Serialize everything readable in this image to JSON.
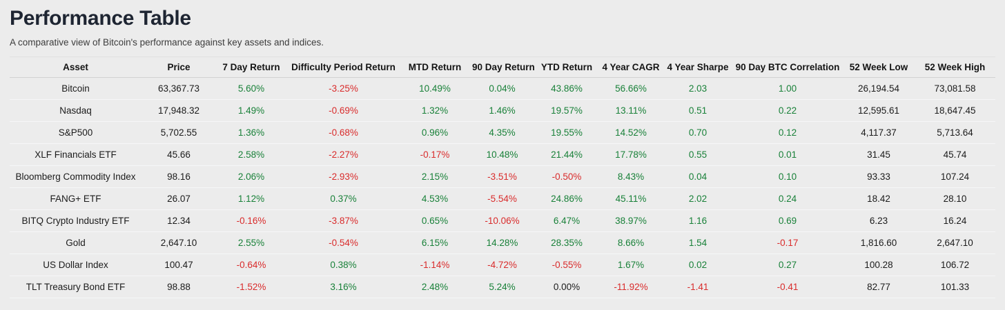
{
  "header": {
    "title": "Performance Table",
    "subtitle": "A comparative view of Bitcoin's performance against key assets and indices."
  },
  "colors": {
    "positive": "#188038",
    "negative": "#d92b2b",
    "neutral": "#1b1b1b"
  },
  "chart_data": {
    "type": "table",
    "title": "Performance Table",
    "columns": [
      "Asset",
      "Price",
      "7 Day Return",
      "Difficulty Period Return",
      "MTD Return",
      "90 Day Return",
      "YTD Return",
      "4 Year CAGR",
      "4 Year Sharpe",
      "90 Day BTC Correlation",
      "52 Week Low",
      "52 Week High"
    ],
    "rows": [
      [
        "Bitcoin",
        "63,367.73",
        {
          "v": "5.60%",
          "s": "pos"
        },
        {
          "v": "-3.25%",
          "s": "neg"
        },
        {
          "v": "10.49%",
          "s": "pos"
        },
        {
          "v": "0.04%",
          "s": "pos"
        },
        {
          "v": "43.86%",
          "s": "pos"
        },
        {
          "v": "56.66%",
          "s": "pos"
        },
        {
          "v": "2.03",
          "s": "pos"
        },
        {
          "v": "1.00",
          "s": "pos"
        },
        "26,194.54",
        "73,081.58"
      ],
      [
        "Nasdaq",
        "17,948.32",
        {
          "v": "1.49%",
          "s": "pos"
        },
        {
          "v": "-0.69%",
          "s": "neg"
        },
        {
          "v": "1.32%",
          "s": "pos"
        },
        {
          "v": "1.46%",
          "s": "pos"
        },
        {
          "v": "19.57%",
          "s": "pos"
        },
        {
          "v": "13.11%",
          "s": "pos"
        },
        {
          "v": "0.51",
          "s": "pos"
        },
        {
          "v": "0.22",
          "s": "pos"
        },
        "12,595.61",
        "18,647.45"
      ],
      [
        "S&P500",
        "5,702.55",
        {
          "v": "1.36%",
          "s": "pos"
        },
        {
          "v": "-0.68%",
          "s": "neg"
        },
        {
          "v": "0.96%",
          "s": "pos"
        },
        {
          "v": "4.35%",
          "s": "pos"
        },
        {
          "v": "19.55%",
          "s": "pos"
        },
        {
          "v": "14.52%",
          "s": "pos"
        },
        {
          "v": "0.70",
          "s": "pos"
        },
        {
          "v": "0.12",
          "s": "pos"
        },
        "4,117.37",
        "5,713.64"
      ],
      [
        "XLF Financials ETF",
        "45.66",
        {
          "v": "2.58%",
          "s": "pos"
        },
        {
          "v": "-2.27%",
          "s": "neg"
        },
        {
          "v": "-0.17%",
          "s": "neg"
        },
        {
          "v": "10.48%",
          "s": "pos"
        },
        {
          "v": "21.44%",
          "s": "pos"
        },
        {
          "v": "17.78%",
          "s": "pos"
        },
        {
          "v": "0.55",
          "s": "pos"
        },
        {
          "v": "0.01",
          "s": "pos"
        },
        "31.45",
        "45.74"
      ],
      [
        "Bloomberg Commodity Index",
        "98.16",
        {
          "v": "2.06%",
          "s": "pos"
        },
        {
          "v": "-2.93%",
          "s": "neg"
        },
        {
          "v": "2.15%",
          "s": "pos"
        },
        {
          "v": "-3.51%",
          "s": "neg"
        },
        {
          "v": "-0.50%",
          "s": "neg"
        },
        {
          "v": "8.43%",
          "s": "pos"
        },
        {
          "v": "0.04",
          "s": "pos"
        },
        {
          "v": "0.10",
          "s": "pos"
        },
        "93.33",
        "107.24"
      ],
      [
        "FANG+ ETF",
        "26.07",
        {
          "v": "1.12%",
          "s": "pos"
        },
        {
          "v": "0.37%",
          "s": "pos"
        },
        {
          "v": "4.53%",
          "s": "pos"
        },
        {
          "v": "-5.54%",
          "s": "neg"
        },
        {
          "v": "24.86%",
          "s": "pos"
        },
        {
          "v": "45.11%",
          "s": "pos"
        },
        {
          "v": "2.02",
          "s": "pos"
        },
        {
          "v": "0.24",
          "s": "pos"
        },
        "18.42",
        "28.10"
      ],
      [
        "BITQ Crypto Industry ETF",
        "12.34",
        {
          "v": "-0.16%",
          "s": "neg"
        },
        {
          "v": "-3.87%",
          "s": "neg"
        },
        {
          "v": "0.65%",
          "s": "pos"
        },
        {
          "v": "-10.06%",
          "s": "neg"
        },
        {
          "v": "6.47%",
          "s": "pos"
        },
        {
          "v": "38.97%",
          "s": "pos"
        },
        {
          "v": "1.16",
          "s": "pos"
        },
        {
          "v": "0.69",
          "s": "pos"
        },
        "6.23",
        "16.24"
      ],
      [
        "Gold",
        "2,647.10",
        {
          "v": "2.55%",
          "s": "pos"
        },
        {
          "v": "-0.54%",
          "s": "neg"
        },
        {
          "v": "6.15%",
          "s": "pos"
        },
        {
          "v": "14.28%",
          "s": "pos"
        },
        {
          "v": "28.35%",
          "s": "pos"
        },
        {
          "v": "8.66%",
          "s": "pos"
        },
        {
          "v": "1.54",
          "s": "pos"
        },
        {
          "v": "-0.17",
          "s": "neg"
        },
        "1,816.60",
        "2,647.10"
      ],
      [
        "US Dollar Index",
        "100.47",
        {
          "v": "-0.64%",
          "s": "neg"
        },
        {
          "v": "0.38%",
          "s": "pos"
        },
        {
          "v": "-1.14%",
          "s": "neg"
        },
        {
          "v": "-4.72%",
          "s": "neg"
        },
        {
          "v": "-0.55%",
          "s": "neg"
        },
        {
          "v": "1.67%",
          "s": "pos"
        },
        {
          "v": "0.02",
          "s": "pos"
        },
        {
          "v": "0.27",
          "s": "pos"
        },
        "100.28",
        "106.72"
      ],
      [
        "TLT Treasury Bond ETF",
        "98.88",
        {
          "v": "-1.52%",
          "s": "neg"
        },
        {
          "v": "3.16%",
          "s": "pos"
        },
        {
          "v": "2.48%",
          "s": "pos"
        },
        {
          "v": "5.24%",
          "s": "pos"
        },
        {
          "v": "0.00%",
          "s": "neutral"
        },
        {
          "v": "-11.92%",
          "s": "neg"
        },
        {
          "v": "-1.41",
          "s": "neg"
        },
        {
          "v": "-0.41",
          "s": "neg"
        },
        "82.77",
        "101.33"
      ]
    ]
  }
}
